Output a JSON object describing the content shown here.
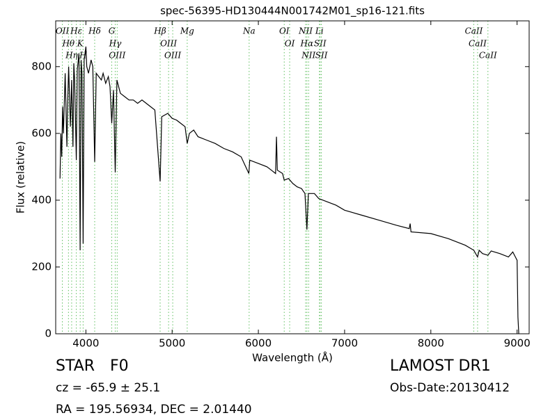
{
  "chart_data": {
    "type": "line",
    "title": "spec-56395-HD130444N001742M01_sp16-121.fits",
    "x_label": "Wavelength (Å)",
    "y_label": "Flux (relative)",
    "xlim": [
      3650,
      9140
    ],
    "ylim": [
      0,
      937
    ],
    "xticks": [
      4000,
      5000,
      6000,
      7000,
      8000,
      9000
    ],
    "yticks": [
      0,
      200,
      400,
      600,
      800
    ],
    "series": [
      {
        "color": "#000000",
        "x": [
          3700,
          3710,
          3720,
          3730,
          3740,
          3760,
          3780,
          3790,
          3800,
          3820,
          3835,
          3850,
          3860,
          3870,
          3889,
          3900,
          3920,
          3933,
          3945,
          3955,
          3968,
          3980,
          4000,
          4010,
          4030,
          4060,
          4080,
          4102,
          4120,
          4150,
          4180,
          4200,
          4230,
          4260,
          4280,
          4300,
          4320,
          4340,
          4360,
          4400,
          4450,
          4500,
          4550,
          4600,
          4650,
          4700,
          4750,
          4800,
          4861,
          4880,
          4950,
          5000,
          5050,
          5100,
          5150,
          5175,
          5200,
          5250,
          5300,
          5400,
          5500,
          5600,
          5700,
          5800,
          5890,
          5900,
          6000,
          6100,
          6150,
          6200,
          6210,
          6220,
          6280,
          6300,
          6350,
          6400,
          6450,
          6500,
          6540,
          6563,
          6580,
          6650,
          6700,
          6800,
          6900,
          7000,
          7200,
          7400,
          7600,
          7750,
          7760,
          7770,
          8000,
          8200,
          8400,
          8498,
          8542,
          8560,
          8600,
          8662,
          8700,
          8800,
          8900,
          8950,
          8980,
          9000,
          9010,
          9020
        ],
        "values": [
          465,
          600,
          530,
          680,
          600,
          780,
          560,
          700,
          800,
          620,
          760,
          560,
          810,
          760,
          520,
          790,
          840,
          250,
          820,
          780,
          270,
          820,
          860,
          800,
          780,
          820,
          800,
          515,
          780,
          770,
          760,
          780,
          750,
          770,
          740,
          630,
          730,
          483,
          760,
          720,
          710,
          700,
          700,
          690,
          700,
          690,
          680,
          670,
          456,
          650,
          660,
          645,
          640,
          630,
          620,
          570,
          600,
          610,
          590,
          580,
          570,
          555,
          545,
          530,
          480,
          520,
          510,
          500,
          490,
          480,
          590,
          490,
          480,
          460,
          465,
          450,
          440,
          435,
          420,
          312,
          420,
          420,
          405,
          395,
          385,
          370,
          355,
          340,
          325,
          315,
          330,
          305,
          300,
          285,
          265,
          250,
          230,
          250,
          240,
          235,
          248,
          240,
          230,
          245,
          230,
          220,
          50,
          0
        ]
      }
    ],
    "lines": {
      "color": "#5fbf5f",
      "waves": [
        3727,
        3798,
        3835,
        3889,
        3934,
        3968,
        4102,
        4300,
        4340,
        4363,
        4861,
        4959,
        5007,
        5175,
        5893,
        6300,
        6363,
        6548,
        6563,
        6583,
        6708,
        6716,
        6731,
        8498,
        8542,
        8662
      ],
      "labels": [
        "OII",
        "Hθ",
        "Hη",
        "Hε",
        "K",
        "H",
        "Hδ",
        "G",
        "Hγ",
        "OIII",
        "Hβ",
        "OIII",
        "OIII",
        "Mg",
        "Na",
        "OI",
        "OI",
        "NII",
        "Hα",
        "NII",
        "Li",
        "SII",
        "SII",
        "CaII",
        "CaII",
        "CaII"
      ]
    },
    "object_class": "STAR",
    "subclass": "F0",
    "redshift": "cz = -65.9 ± 25.1",
    "survey": "LAMOST DR1",
    "obs_date": "Obs-Date:20130412",
    "coords": "RA = 195.56934, DEC = 2.01440"
  }
}
